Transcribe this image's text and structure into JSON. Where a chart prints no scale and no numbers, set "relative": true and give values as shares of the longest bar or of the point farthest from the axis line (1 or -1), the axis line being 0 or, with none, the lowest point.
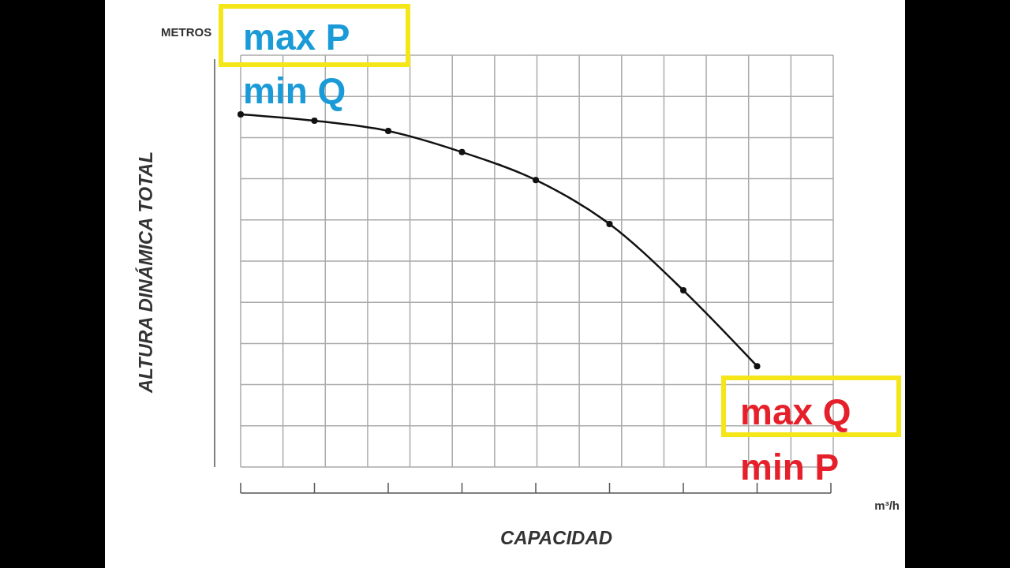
{
  "chart_data": {
    "type": "line",
    "relative": true,
    "xlabel": "CAPACIDAD",
    "ylabel": "ALTURA DINÁMICA TOTAL",
    "categories": [
      null,
      null,
      null,
      null,
      null,
      null,
      null,
      null,
      null
    ],
    "series": [
      {
        "color": "#111111",
        "values": [
          1,
          0.982,
          0.953,
          0.893,
          0.814,
          0.689,
          0.501,
          0.286,
          null
        ]
      }
    ],
    "marker": "circle",
    "line_style": "solid",
    "grid": true,
    "annotations": [
      "METROS",
      "m³/h",
      "max P",
      "min Q",
      "max Q",
      "min P"
    ]
  }
}
